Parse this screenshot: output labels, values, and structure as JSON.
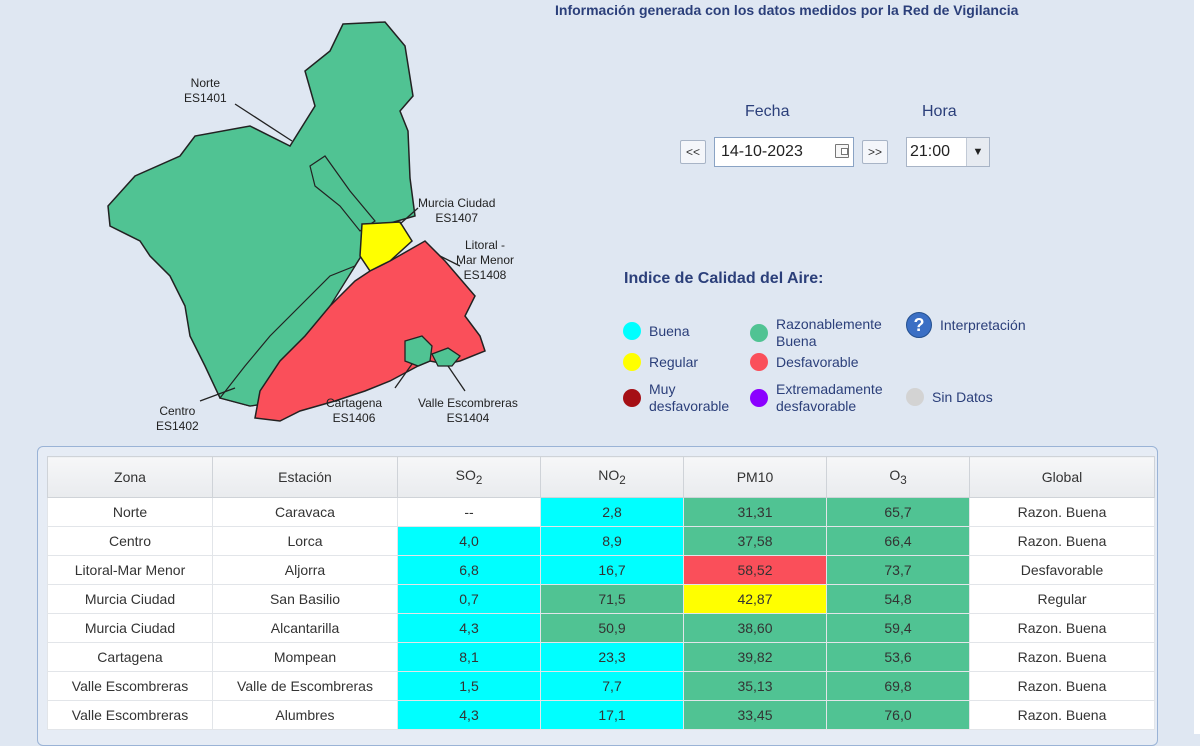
{
  "header": {
    "info_text": "Información generada con los datos medidos por la Red de Vigilancia"
  },
  "map": {
    "zones": [
      {
        "name": "Norte",
        "code": "ES1401",
        "status_color": "#50c393"
      },
      {
        "name": "Centro",
        "code": "ES1402",
        "status_color": "#50c393"
      },
      {
        "name": "Murcia Ciudad",
        "code": "ES1407",
        "status_color": "#ffff00"
      },
      {
        "name": "Litoral -",
        "name2": "Mar Menor",
        "code": "ES1408",
        "status_color": "#fa4f5a"
      },
      {
        "name": "Cartagena",
        "code": "ES1406",
        "status_color": "#50c393"
      },
      {
        "name": "Valle Escombreras",
        "code": "ES1404",
        "status_color": "#50c393"
      }
    ]
  },
  "controls": {
    "fecha_label": "Fecha",
    "hora_label": "Hora",
    "prev_label": "<<",
    "next_label": ">>",
    "date_value": "14-10-2023",
    "hour_value": "21:00"
  },
  "legend": {
    "title": "Indice de Calidad del Aire:",
    "items": [
      {
        "label": "Buena",
        "color": "#00ffff"
      },
      {
        "label": "Razonablemente Buena",
        "color": "#50c393"
      },
      {
        "label": "Regular",
        "color": "#ffff00"
      },
      {
        "label": "Desfavorable",
        "color": "#fa4f5a"
      },
      {
        "label": "Muy desfavorable",
        "color": "#a50f15"
      },
      {
        "label": "Extremadamente desfavorable",
        "color": "#8b00ff"
      },
      {
        "label": "Sin Datos",
        "color": "#d3d3d3"
      }
    ],
    "interpretacion_label": "Interpretación"
  },
  "table": {
    "headers": [
      "Zona",
      "Estación",
      "SO2",
      "NO2",
      "PM10",
      "O3",
      "Global"
    ],
    "rows": [
      {
        "zona": "Norte",
        "estacion": "Caravaca",
        "so2": "--",
        "no2": "2,8",
        "pm10": "31,31",
        "o3": "65,7",
        "global": "Razon. Buena"
      },
      {
        "zona": "Centro",
        "estacion": "Lorca",
        "so2": "4,0",
        "no2": "8,9",
        "pm10": "37,58",
        "o3": "66,4",
        "global": "Razon. Buena"
      },
      {
        "zona": "Litoral-Mar Menor",
        "estacion": "Aljorra",
        "so2": "6,8",
        "no2": "16,7",
        "pm10": "58,52",
        "o3": "73,7",
        "global": "Desfavorable"
      },
      {
        "zona": "Murcia Ciudad",
        "estacion": "San Basilio",
        "so2": "0,7",
        "no2": "71,5",
        "pm10": "42,87",
        "o3": "54,8",
        "global": "Regular"
      },
      {
        "zona": "Murcia Ciudad",
        "estacion": "Alcantarilla",
        "so2": "4,3",
        "no2": "50,9",
        "pm10": "38,60",
        "o3": "59,4",
        "global": "Razon. Buena"
      },
      {
        "zona": "Cartagena",
        "estacion": "Mompean",
        "so2": "8,1",
        "no2": "23,3",
        "pm10": "39,82",
        "o3": "53,6",
        "global": "Razon. Buena"
      },
      {
        "zona": "Valle Escombreras",
        "estacion": "Valle de Escombreras",
        "so2": "1,5",
        "no2": "7,7",
        "pm10": "35,13",
        "o3": "69,8",
        "global": "Razon. Buena"
      },
      {
        "zona": "Valle Escombreras",
        "estacion": "Alumbres",
        "so2": "4,3",
        "no2": "17,1",
        "pm10": "33,45",
        "o3": "76,0",
        "global": "Razon. Buena"
      }
    ]
  }
}
